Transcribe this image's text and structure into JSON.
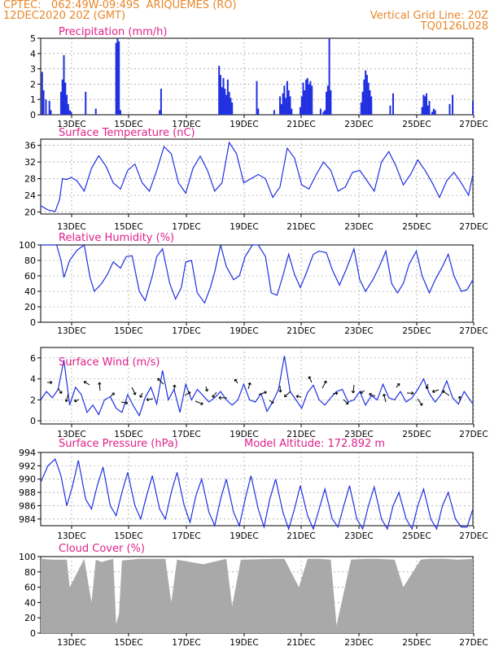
{
  "header": {
    "line1_left": "CPTEC:   062:49W-09:49S  ARIQUEMES (RO)",
    "line2_left": "12DEC2020 20Z (GMT)",
    "line2_right": "Vertical Grid Line: 20Z",
    "line3_right": "TQ0126L028"
  },
  "colors": {
    "header": "#e8872a",
    "title": "#e0208a",
    "series": "#2030e0",
    "cloud": "#a9a9a9",
    "arrow": "#000000"
  },
  "x_tick_labels": [
    "13DEC",
    "15DEC",
    "17DEC",
    "19DEC",
    "21DEC",
    "23DEC",
    "25DEC",
    "27DEC"
  ],
  "chart_data": [
    {
      "type": "bar",
      "title": "Precipitation (mm/h)",
      "xlim": [
        0,
        14.9
      ],
      "ylim": [
        0,
        5
      ],
      "yticks": [
        0,
        1,
        2,
        3,
        4,
        5
      ],
      "grid": true,
      "x": [
        0.05,
        0.1,
        0.18,
        0.3,
        0.35,
        0.7,
        0.75,
        0.8,
        0.85,
        0.9,
        0.95,
        1.0,
        1.05,
        1.55,
        1.9,
        2.6,
        2.65,
        2.7,
        2.75,
        4.1,
        4.15,
        6.15,
        6.2,
        6.25,
        6.3,
        6.35,
        6.4,
        6.45,
        6.5,
        6.55,
        6.6,
        7.45,
        7.5,
        8.05,
        8.25,
        8.3,
        8.35,
        8.4,
        8.45,
        8.5,
        8.55,
        8.6,
        8.65,
        8.95,
        9.0,
        9.05,
        9.1,
        9.15,
        9.2,
        9.25,
        9.3,
        9.35,
        9.65,
        9.75,
        9.8,
        9.85,
        9.9,
        9.95,
        10.0,
        11.05,
        11.1,
        11.15,
        11.2,
        11.25,
        11.3,
        11.35,
        11.4,
        12.05,
        12.15,
        13.15,
        13.2,
        13.25,
        13.3,
        13.35,
        13.4,
        13.5,
        13.55,
        13.6,
        14.1,
        14.2,
        14.9
      ],
      "values": [
        2.8,
        1.6,
        1.0,
        0.9,
        0.3,
        1.5,
        2.3,
        3.9,
        2.1,
        1.3,
        0.7,
        0.3,
        0.2,
        1.5,
        0.4,
        4.7,
        5.0,
        4.8,
        0.3,
        0.3,
        1.7,
        3.2,
        2.6,
        1.8,
        2.4,
        1.7,
        1.3,
        2.3,
        1.5,
        1.1,
        0.8,
        2.2,
        0.4,
        0.3,
        1.2,
        0.7,
        1.4,
        1.9,
        1.1,
        2.2,
        1.6,
        1.2,
        0.4,
        0.5,
        1.2,
        2.1,
        1.6,
        2.3,
        2.4,
        2.0,
        2.2,
        1.9,
        0.4,
        0.2,
        0.3,
        1.5,
        1.9,
        5.0,
        1.6,
        0.8,
        1.5,
        2.3,
        2.9,
        2.6,
        2.1,
        1.6,
        1.2,
        0.6,
        1.4,
        0.5,
        1.3,
        1.2,
        1.4,
        0.6,
        0.9,
        0.2,
        0.4,
        0.3,
        0.7,
        1.3,
        0.9
      ]
    },
    {
      "type": "line",
      "title": "Surface Temperature (nC)",
      "xlim": [
        0,
        14.9
      ],
      "ylim": [
        19.5,
        37.5
      ],
      "yticks": [
        20,
        24,
        28,
        32,
        36
      ],
      "grid": true,
      "x": [
        0,
        0.25,
        0.5,
        0.65,
        0.75,
        0.9,
        1.05,
        1.25,
        1.5,
        1.75,
        2.0,
        2.25,
        2.5,
        2.75,
        3.0,
        3.25,
        3.5,
        3.75,
        4.0,
        4.25,
        4.5,
        4.75,
        5.0,
        5.25,
        5.5,
        5.75,
        6.0,
        6.25,
        6.5,
        6.75,
        7.0,
        7.25,
        7.5,
        7.75,
        8.0,
        8.25,
        8.5,
        8.75,
        9.0,
        9.25,
        9.5,
        9.75,
        10.0,
        10.25,
        10.5,
        10.75,
        11.0,
        11.25,
        11.5,
        11.75,
        12.0,
        12.25,
        12.5,
        12.75,
        13.0,
        13.25,
        13.5,
        13.75,
        14.0,
        14.25,
        14.5,
        14.75,
        14.9
      ],
      "values": [
        21.5,
        20.5,
        20.1,
        23,
        28,
        27.8,
        28.3,
        27.5,
        25,
        30.5,
        33.5,
        31,
        27,
        25.5,
        30,
        31.5,
        27,
        25,
        30,
        35.7,
        34,
        27,
        24.5,
        30.5,
        33.4,
        30,
        25,
        27,
        36.7,
        34,
        27,
        28,
        29,
        28,
        23.5,
        26,
        35.3,
        33,
        26.5,
        25.5,
        29,
        32,
        30,
        25,
        26,
        29.5,
        30,
        27.5,
        25,
        32,
        34.5,
        31,
        26.5,
        29,
        32.5,
        30,
        27,
        23.5,
        27.5,
        29.5,
        27,
        24,
        29
      ]
    },
    {
      "type": "line",
      "title": "Relative Humidity (%)",
      "xlim": [
        0,
        14.9
      ],
      "ylim": [
        0,
        100
      ],
      "yticks": [
        0,
        20,
        40,
        60,
        80,
        100
      ],
      "grid": true,
      "x": [
        0,
        0.3,
        0.55,
        0.7,
        0.8,
        1.0,
        1.25,
        1.5,
        1.7,
        1.85,
        2.1,
        2.3,
        2.5,
        2.75,
        2.95,
        3.15,
        3.4,
        3.6,
        3.85,
        4.0,
        4.2,
        4.45,
        4.65,
        4.85,
        5.0,
        5.2,
        5.4,
        5.65,
        5.85,
        6.0,
        6.2,
        6.4,
        6.65,
        6.85,
        7.05,
        7.3,
        7.5,
        7.75,
        7.95,
        8.15,
        8.35,
        8.55,
        8.75,
        8.95,
        9.15,
        9.4,
        9.6,
        9.85,
        10.05,
        10.3,
        10.55,
        10.8,
        11.0,
        11.2,
        11.45,
        11.65,
        11.9,
        12.1,
        12.3,
        12.5,
        12.7,
        12.95,
        13.15,
        13.4,
        13.6,
        13.85,
        14.05,
        14.25,
        14.5,
        14.7,
        14.9
      ],
      "values": [
        100,
        100,
        100,
        80,
        58,
        80,
        93,
        100,
        58,
        40,
        50,
        62,
        78,
        70,
        85,
        86,
        40,
        28,
        60,
        85,
        95,
        50,
        30,
        45,
        78,
        80,
        38,
        25,
        45,
        65,
        100,
        72,
        55,
        60,
        85,
        100,
        100,
        85,
        38,
        35,
        60,
        88,
        62,
        45,
        63,
        88,
        92,
        90,
        68,
        48,
        70,
        95,
        55,
        40,
        55,
        70,
        92,
        50,
        38,
        50,
        75,
        92,
        60,
        38,
        55,
        72,
        88,
        60,
        40,
        42,
        55
      ]
    },
    {
      "type": "line",
      "title": "Surface Wind (m/s)",
      "xlim": [
        0,
        14.9
      ],
      "ylim": [
        -0.3,
        7
      ],
      "yticks": [
        0,
        2,
        4,
        6
      ],
      "grid": true,
      "x": [
        0,
        0.2,
        0.4,
        0.6,
        0.8,
        1.0,
        1.2,
        1.4,
        1.6,
        1.8,
        2.0,
        2.2,
        2.4,
        2.6,
        2.8,
        3.0,
        3.2,
        3.4,
        3.6,
        3.8,
        4.0,
        4.2,
        4.4,
        4.6,
        4.8,
        5.0,
        5.2,
        5.4,
        5.6,
        5.8,
        6.0,
        6.2,
        6.4,
        6.6,
        6.8,
        7.0,
        7.2,
        7.4,
        7.6,
        7.8,
        8.0,
        8.2,
        8.4,
        8.6,
        8.8,
        9.0,
        9.2,
        9.4,
        9.6,
        9.8,
        10.0,
        10.2,
        10.4,
        10.6,
        10.8,
        11.0,
        11.2,
        11.4,
        11.6,
        11.8,
        12.0,
        12.2,
        12.4,
        12.6,
        12.8,
        13.0,
        13.2,
        13.4,
        13.6,
        13.8,
        14.0,
        14.2,
        14.4,
        14.6,
        14.8,
        14.9
      ],
      "values": [
        2.0,
        2.8,
        2.2,
        3.0,
        5.8,
        1.5,
        3.2,
        2.5,
        0.8,
        1.5,
        0.6,
        2.0,
        2.3,
        1.2,
        0.8,
        2.5,
        1.4,
        0.5,
        2.2,
        3.2,
        1.6,
        4.8,
        2.0,
        3.0,
        0.8,
        3.5,
        2.0,
        3.0,
        2.4,
        1.8,
        2.2,
        2.8,
        2.0,
        1.5,
        2.0,
        3.5,
        2.0,
        1.8,
        2.6,
        0.9,
        1.8,
        3.0,
        6.2,
        2.8,
        2.0,
        1.2,
        2.7,
        3.4,
        2.0,
        1.5,
        2.2,
        2.8,
        3.0,
        1.8,
        2.0,
        2.8,
        1.5,
        2.4,
        2.0,
        3.5,
        2.2,
        2.0,
        2.8,
        1.8,
        2.2,
        3.0,
        4.0,
        2.6,
        1.8,
        2.5,
        3.8,
        2.2,
        1.6,
        2.8,
        2.0,
        1.6
      ]
    },
    {
      "type": "line",
      "title": "Surface Pressure (hPa)",
      "annotation": "Model Altitude: 172.892 m",
      "xlim": [
        0,
        14.9
      ],
      "ylim": [
        983,
        994
      ],
      "yticks": [
        984,
        986,
        988,
        990,
        992,
        994
      ],
      "grid": true,
      "x": [
        0,
        0.25,
        0.5,
        0.7,
        0.9,
        1.1,
        1.3,
        1.55,
        1.75,
        1.95,
        2.15,
        2.4,
        2.6,
        2.8,
        3.0,
        3.25,
        3.45,
        3.65,
        3.85,
        4.1,
        4.3,
        4.5,
        4.7,
        4.95,
        5.15,
        5.35,
        5.55,
        5.8,
        6.0,
        6.2,
        6.4,
        6.65,
        6.85,
        7.05,
        7.25,
        7.5,
        7.7,
        7.9,
        8.1,
        8.35,
        8.55,
        8.75,
        8.95,
        9.2,
        9.4,
        9.6,
        9.8,
        10.05,
        10.25,
        10.45,
        10.65,
        10.9,
        11.1,
        11.3,
        11.5,
        11.75,
        11.95,
        12.15,
        12.35,
        12.6,
        12.8,
        13.0,
        13.2,
        13.45,
        13.65,
        13.85,
        14.05,
        14.3,
        14.5,
        14.7,
        14.9
      ],
      "values": [
        989.5,
        992,
        993,
        990.5,
        986,
        989,
        992.8,
        987,
        985.5,
        989,
        991.8,
        986,
        984.5,
        988,
        991,
        986,
        984,
        987.5,
        990.5,
        985.5,
        984,
        988,
        991,
        986,
        983.5,
        987.5,
        990,
        985,
        983,
        987,
        990,
        985,
        983,
        987,
        990.5,
        985.5,
        982.8,
        987,
        990,
        985,
        982.5,
        985.5,
        989,
        984.5,
        982.5,
        985.5,
        988.5,
        984,
        982.8,
        986,
        989,
        984,
        982.5,
        986,
        988.8,
        984,
        982.5,
        986,
        988,
        984,
        982.5,
        986,
        988.5,
        984,
        982.5,
        986,
        988,
        984,
        982.8,
        982.8,
        985.5
      ]
    },
    {
      "type": "area",
      "title": "Cloud Cover (%)",
      "xlim": [
        0,
        14.9
      ],
      "ylim": [
        0,
        100
      ],
      "yticks": [
        0,
        20,
        40,
        60,
        80,
        100
      ],
      "grid": true,
      "x": [
        0,
        0.4,
        0.9,
        1.0,
        1.5,
        1.75,
        1.9,
        2.1,
        2.5,
        2.6,
        2.7,
        2.8,
        3.4,
        4.3,
        4.5,
        4.7,
        5.6,
        6.4,
        6.6,
        6.9,
        8.2,
        8.4,
        8.9,
        9.2,
        9.6,
        10.0,
        10.2,
        10.7,
        11.2,
        11.6,
        12.2,
        12.5,
        13.1,
        13.4,
        13.9,
        14.4,
        14.9
      ],
      "values": [
        97,
        96,
        96,
        60,
        97,
        40,
        96,
        93,
        97,
        12,
        25,
        95,
        97,
        97,
        40,
        96,
        90,
        97,
        35,
        96,
        97,
        97,
        60,
        97,
        97,
        96,
        10,
        96,
        97,
        97,
        96,
        60,
        96,
        97,
        97,
        96,
        97
      ]
    }
  ]
}
